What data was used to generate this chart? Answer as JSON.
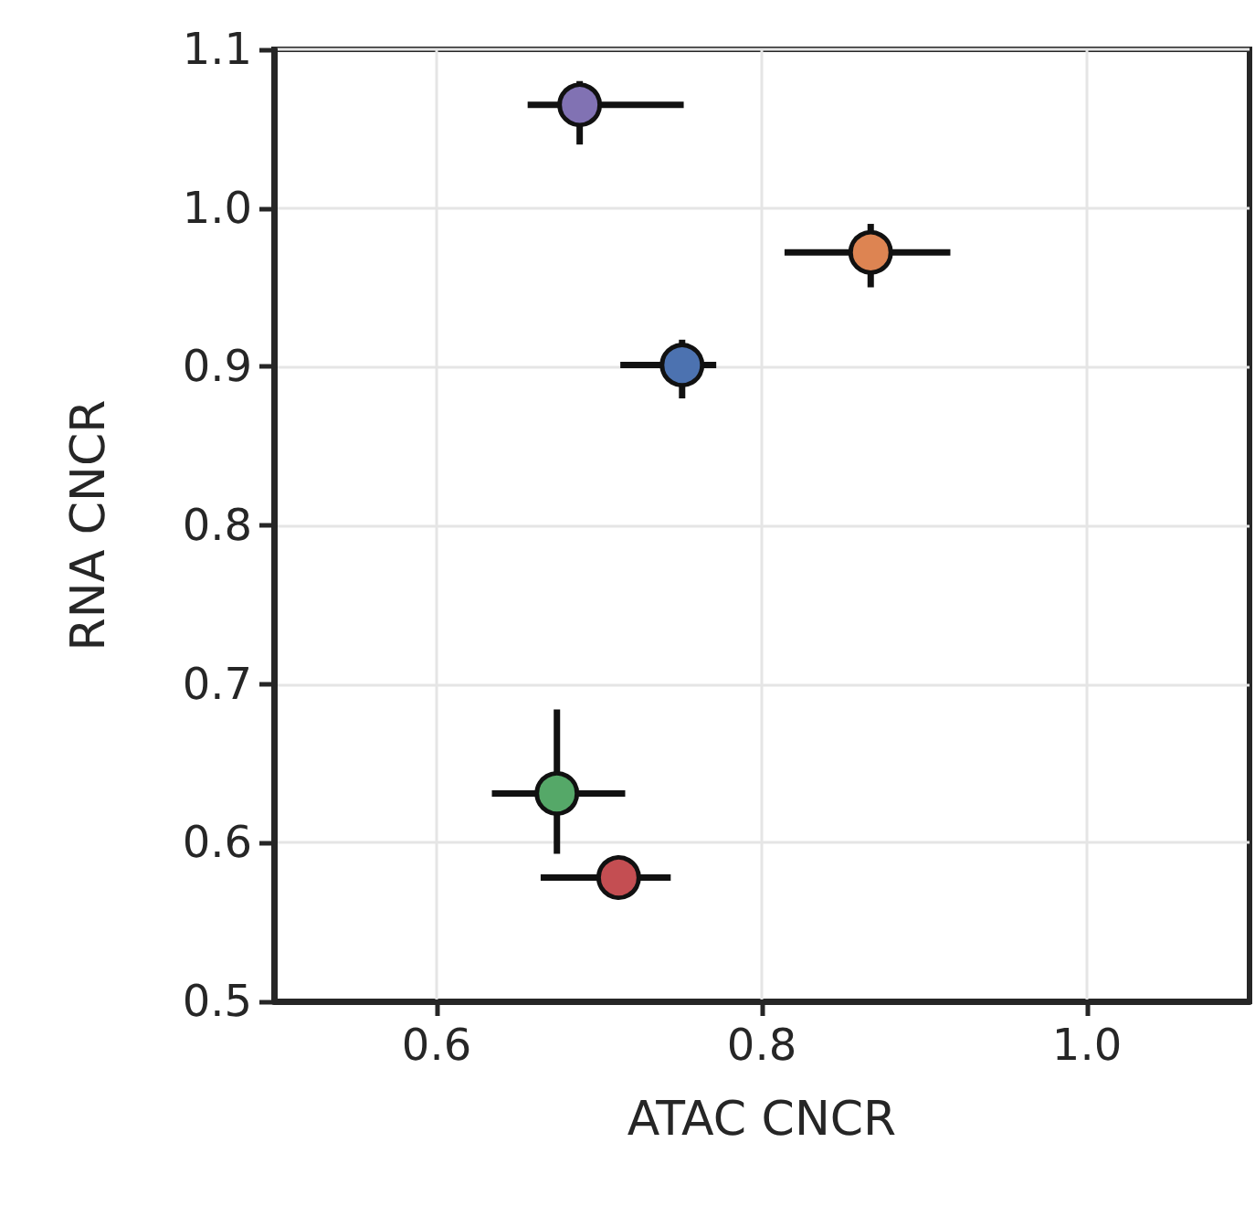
{
  "chart_data": {
    "type": "scatter",
    "xlabel": "ATAC CNCR",
    "ylabel": "RNA CNCR",
    "xlim": [
      0.5,
      1.1
    ],
    "xticks": [
      0.6,
      0.8,
      {
        "value": 1,
        "label": "1.0"
      }
    ],
    "ylim": [
      0.5,
      1.1
    ],
    "yticks": [
      0.5,
      0.6,
      0.7,
      0.8,
      0.9,
      {
        "value": 1,
        "label": "1.0"
      },
      1.1
    ],
    "grid": true,
    "marker": "circle",
    "series": [
      {
        "color": "#4c72b0",
        "x": [
          0.751
        ],
        "values": [
          0.901
        ],
        "xerrors": [
          [
            0.713,
            0.772
          ]
        ],
        "errors": [
          [
            0.88,
            0.917
          ]
        ]
      },
      {
        "color": "#dd8452",
        "x": [
          0.867
        ],
        "values": [
          0.972
        ],
        "xerrors": [
          [
            0.814,
            0.916
          ]
        ],
        "errors": [
          [
            0.95,
            0.99
          ]
        ]
      },
      {
        "color": "#55a868",
        "x": [
          0.674
        ],
        "values": [
          0.631
        ],
        "xerrors": [
          [
            0.634,
            0.716
          ]
        ],
        "errors": [
          [
            0.593,
            0.684
          ]
        ]
      },
      {
        "color": "#c44e52",
        "x": [
          0.712
        ],
        "values": [
          0.578
        ],
        "xerrors": [
          [
            0.664,
            0.744
          ]
        ],
        "errors": [
          null
        ]
      },
      {
        "color": "#8172b3",
        "x": [
          0.688
        ],
        "values": [
          1.065
        ],
        "xerrors": [
          [
            0.656,
            0.752
          ]
        ],
        "errors": [
          [
            1.04,
            1.08
          ]
        ]
      }
    ]
  }
}
